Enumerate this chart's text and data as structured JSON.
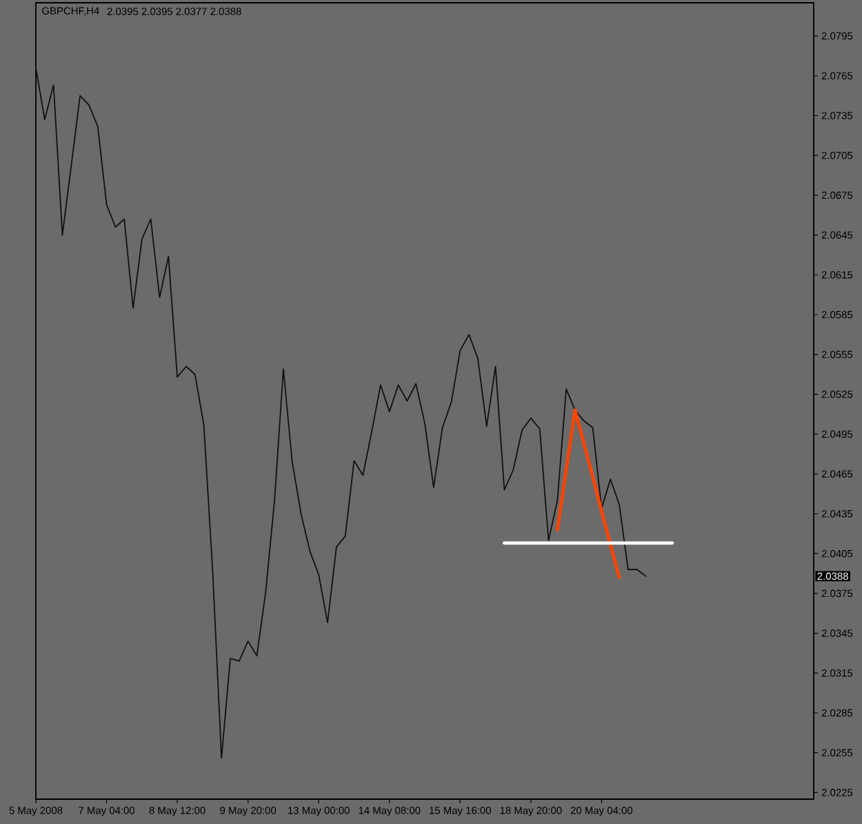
{
  "chart_data": {
    "type": "line",
    "title": "GBPCHF,H4",
    "subtitle": "2.0395 2.0395 2.0377 2.0388",
    "categories": [
      "5 May 2008",
      null,
      null,
      null,
      null,
      null,
      null,
      null,
      "7 May 04:00",
      null,
      null,
      null,
      null,
      null,
      null,
      null,
      "8 May 12:00",
      null,
      null,
      null,
      null,
      null,
      null,
      null,
      "9 May 20:00",
      null,
      null,
      null,
      null,
      null,
      null,
      null,
      "13 May 00:00",
      null,
      null,
      null,
      null,
      null,
      null,
      null,
      "14 May 08:00",
      null,
      null,
      null,
      null,
      null,
      null,
      null,
      "15 May 16:00",
      null,
      null,
      null,
      null,
      null,
      null,
      null,
      "18 May 20:00",
      null,
      null,
      null,
      null,
      null,
      null,
      null,
      "20 May 04:00",
      null,
      null,
      null,
      null,
      null,
      null,
      null,
      null,
      null,
      null,
      null,
      null,
      null,
      null,
      null,
      null,
      null,
      null,
      null,
      null,
      null,
      null,
      null,
      null
    ],
    "ylim": [
      2.022,
      2.082
    ],
    "yticks": [
      2.0225,
      2.0255,
      2.0285,
      2.0315,
      2.0345,
      2.0375,
      2.0405,
      2.0435,
      2.0465,
      2.0495,
      2.0525,
      2.0555,
      2.0585,
      2.0615,
      2.0645,
      2.0675,
      2.0705,
      2.0735,
      2.0765,
      2.0795
    ],
    "series": [
      {
        "color": "#111111",
        "values": [
          2.0771,
          2.0732,
          2.0758,
          2.0645,
          2.0697,
          2.075,
          2.0743,
          2.0727,
          2.0668,
          2.0651,
          2.0657,
          2.059,
          2.0642,
          2.0657,
          2.0598,
          2.0629,
          2.0538,
          2.0546,
          2.054,
          2.0502,
          2.0392,
          2.0251,
          2.0326,
          2.0324,
          2.0339,
          2.0328,
          2.0376,
          2.0445,
          2.0544,
          2.0474,
          2.0435,
          2.0407,
          2.0389,
          2.0353,
          2.041,
          2.0418,
          2.0475,
          2.0464,
          2.0497,
          2.0532,
          2.0512,
          2.0532,
          2.052,
          2.0533,
          2.0503,
          2.0455,
          2.05,
          2.0519,
          2.0558,
          2.057,
          2.0552,
          2.0501,
          2.0546,
          2.0453,
          2.0468,
          2.0498,
          2.0507,
          2.0499,
          2.0415,
          2.0445,
          2.0529,
          2.0513,
          2.0505,
          2.05,
          2.0439,
          2.0461,
          2.0442,
          2.0393,
          2.0393,
          2.0388,
          null,
          null,
          null,
          null,
          null,
          null,
          null,
          null,
          null,
          null,
          null,
          null,
          null,
          null,
          null,
          null,
          null,
          null,
          null
        ]
      },
      {
        "type": "line",
        "color": "#ff4500",
        "values": [
          null,
          null,
          null,
          null,
          null,
          null,
          null,
          null,
          null,
          null,
          null,
          null,
          null,
          null,
          null,
          null,
          null,
          null,
          null,
          null,
          null,
          null,
          null,
          null,
          null,
          null,
          null,
          null,
          null,
          null,
          null,
          null,
          null,
          null,
          null,
          null,
          null,
          null,
          null,
          null,
          null,
          null,
          null,
          null,
          null,
          null,
          null,
          null,
          null,
          null,
          null,
          null,
          null,
          null,
          null,
          null,
          null,
          null,
          null,
          2.0423,
          2.0468,
          2.0513,
          2.0488,
          2.0463,
          2.0437,
          2.0412,
          2.0387,
          null,
          null,
          null,
          null,
          null,
          null,
          null,
          null,
          null,
          null,
          null,
          null,
          null,
          null,
          null,
          null,
          null,
          null,
          null,
          null,
          null,
          null
        ]
      },
      {
        "type": "line",
        "color": "#ffffff",
        "values": [
          null,
          null,
          null,
          null,
          null,
          null,
          null,
          null,
          null,
          null,
          null,
          null,
          null,
          null,
          null,
          null,
          null,
          null,
          null,
          null,
          null,
          null,
          null,
          null,
          null,
          null,
          null,
          null,
          null,
          null,
          null,
          null,
          null,
          null,
          null,
          null,
          null,
          null,
          null,
          null,
          null,
          null,
          null,
          null,
          null,
          null,
          null,
          null,
          null,
          null,
          null,
          null,
          null,
          2.0413,
          2.0413,
          2.0413,
          2.0413,
          2.0413,
          2.0413,
          2.0413,
          2.0413,
          2.0413,
          2.0413,
          2.0413,
          2.0413,
          2.0413,
          2.0413,
          2.0413,
          2.0413,
          2.0413,
          2.0413,
          2.0413,
          2.0413,
          null,
          null,
          null,
          null,
          null,
          null,
          null,
          null,
          null,
          null,
          null,
          null,
          null,
          null,
          null,
          null
        ]
      }
    ],
    "annotations": [
      "2.0388"
    ]
  }
}
